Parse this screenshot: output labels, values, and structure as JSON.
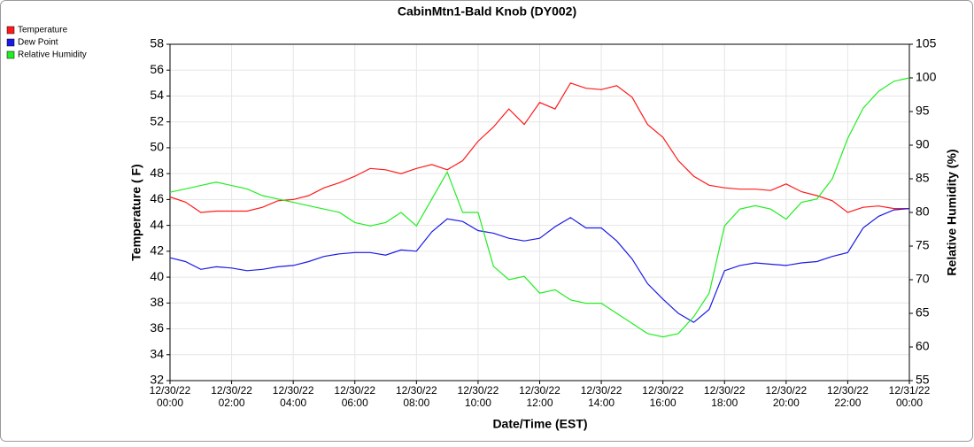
{
  "chart_data": {
    "type": "line",
    "title": "CabinMtn1-Bald Knob (DY002)",
    "x_label": "Date/Time (EST)",
    "y_label": "Temperature ( F)",
    "y2_label": "Relative Humidity (%)",
    "x": [
      "12/30/22 00:00",
      "12/30/22 00:30",
      "12/30/22 01:00",
      "12/30/22 01:30",
      "12/30/22 02:00",
      "12/30/22 02:30",
      "12/30/22 03:00",
      "12/30/22 03:30",
      "12/30/22 04:00",
      "12/30/22 04:30",
      "12/30/22 05:00",
      "12/30/22 05:30",
      "12/30/22 06:00",
      "12/30/22 06:30",
      "12/30/22 07:00",
      "12/30/22 07:30",
      "12/30/22 08:00",
      "12/30/22 08:30",
      "12/30/22 09:00",
      "12/30/22 09:30",
      "12/30/22 10:00",
      "12/30/22 10:30",
      "12/30/22 11:00",
      "12/30/22 11:30",
      "12/30/22 12:00",
      "12/30/22 12:30",
      "12/30/22 13:00",
      "12/30/22 13:30",
      "12/30/22 14:00",
      "12/30/22 14:30",
      "12/30/22 15:00",
      "12/30/22 15:30",
      "12/30/22 16:00",
      "12/30/22 16:30",
      "12/30/22 17:00",
      "12/30/22 17:30",
      "12/30/22 18:00",
      "12/30/22 18:30",
      "12/30/22 19:00",
      "12/30/22 19:30",
      "12/30/22 20:00",
      "12/30/22 20:30",
      "12/30/22 21:00",
      "12/30/22 21:30",
      "12/30/22 22:00",
      "12/30/22 22:30",
      "12/30/22 23:00",
      "12/30/22 23:30",
      "12/31/22 00:00"
    ],
    "series": [
      {
        "name": "Temperature",
        "color": "#ff1a1a",
        "axis": "y",
        "values": [
          46.2,
          45.8,
          45.0,
          45.1,
          45.1,
          45.1,
          45.4,
          45.9,
          46.0,
          46.3,
          46.9,
          47.3,
          47.8,
          48.4,
          48.3,
          48.0,
          48.4,
          48.7,
          48.3,
          49.0,
          50.5,
          51.6,
          53.0,
          51.8,
          53.5,
          53.0,
          55.0,
          54.6,
          54.5,
          54.8,
          53.9,
          51.8,
          50.8,
          49.0,
          47.8,
          47.1,
          46.9,
          46.8,
          46.8,
          46.7,
          47.2,
          46.6,
          46.3,
          45.9,
          45.0,
          45.4,
          45.5,
          45.3,
          45.3
        ]
      },
      {
        "name": "Dew Point",
        "color": "#1a1ae6",
        "axis": "y",
        "values": [
          41.5,
          41.2,
          40.6,
          40.8,
          40.7,
          40.5,
          40.6,
          40.8,
          40.9,
          41.2,
          41.6,
          41.8,
          41.9,
          41.9,
          41.7,
          42.1,
          42.0,
          43.5,
          44.5,
          44.3,
          43.6,
          43.4,
          43.0,
          42.8,
          43.0,
          43.9,
          44.6,
          43.8,
          43.8,
          42.8,
          41.4,
          39.5,
          38.3,
          37.2,
          36.5,
          37.5,
          40.5,
          40.9,
          41.1,
          41.0,
          40.9,
          41.1,
          41.2,
          41.6,
          41.9,
          43.8,
          44.7,
          45.2,
          45.3
        ]
      },
      {
        "name": "Relative Humidity",
        "color": "#22ee22",
        "axis": "y2",
        "values": [
          83,
          83.5,
          84,
          84.5,
          84,
          83.5,
          82.5,
          82,
          81.5,
          81,
          80.5,
          80,
          78.5,
          78,
          78.5,
          80,
          78,
          82,
          86,
          80,
          80,
          72,
          70,
          70.5,
          68,
          68.5,
          67,
          66.5,
          66.5,
          65,
          63.5,
          62,
          61.5,
          62,
          64.5,
          68,
          78,
          80.5,
          81,
          80.5,
          79,
          81.5,
          82,
          85,
          91,
          95.5,
          98,
          99.5,
          100
        ]
      }
    ],
    "xlim": [
      "12/30/22 00:00",
      "12/31/22 00:00"
    ],
    "xticks": [
      "12/30/22 00:00",
      "12/30/22 02:00",
      "12/30/22 04:00",
      "12/30/22 06:00",
      "12/30/22 08:00",
      "12/30/22 10:00",
      "12/30/22 12:00",
      "12/30/22 14:00",
      "12/30/22 16:00",
      "12/30/22 18:00",
      "12/30/22 20:00",
      "12/30/22 22:00",
      "12/31/22 00:00"
    ],
    "ylim": [
      32,
      58
    ],
    "yticks": [
      32,
      34,
      36,
      38,
      40,
      42,
      44,
      46,
      48,
      50,
      52,
      54,
      56,
      58
    ],
    "y2lim": [
      55,
      105
    ],
    "y2ticks": [
      55,
      60,
      65,
      70,
      75,
      80,
      85,
      90,
      95,
      100,
      105
    ],
    "grid": true,
    "legend": "top-left"
  }
}
